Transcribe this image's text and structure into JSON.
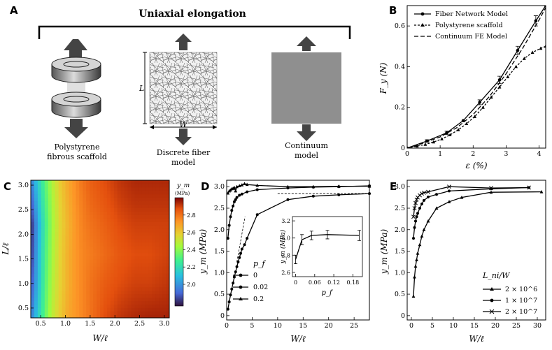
{
  "panels": {
    "A": {
      "label": "A",
      "title": "Uniaxial elongation",
      "captions": [
        [
          "Polystyrene",
          "fibrous scaffold"
        ],
        [
          "Discrete fiber",
          "model"
        ],
        [
          "Continuum",
          "model"
        ]
      ],
      "dim_l": "L",
      "dim_w": "W"
    },
    "B": {
      "label": "B",
      "xlabel": "ε (%)",
      "ylabel": "F_y (N)",
      "xticks": [
        "0",
        "1",
        "2",
        "3",
        "4"
      ],
      "yticks": [
        "0",
        "0.2",
        "0.4",
        "0.6"
      ],
      "legend": [
        "Fiber Network Model",
        "Polystyrene scaffold",
        "Continuum FE Model"
      ]
    },
    "C": {
      "label": "C",
      "xlabel": "W/ℓ",
      "ylabel": "L/ℓ",
      "xticks": [
        "0.5",
        "1.0",
        "1.5",
        "2.0",
        "2.5",
        "3.0"
      ],
      "yticks": [
        "0.5",
        "1.0",
        "1.5",
        "2.0",
        "2.5",
        "3.0"
      ],
      "cbar_title": "y_m",
      "cbar_unit": "(MPa)",
      "cbar_ticks": [
        "2.0",
        "2.2",
        "2.4",
        "2.6",
        "2.8"
      ]
    },
    "D": {
      "label": "D",
      "xlabel": "W/ℓ",
      "ylabel": "y_m (MPa)",
      "xticks": [
        "0",
        "5",
        "10",
        "15",
        "20",
        "25"
      ],
      "yticks": [
        "0",
        "0.5",
        "1.0",
        "1.5",
        "2.0",
        "2.5",
        "3.0"
      ],
      "legend_title": "p_f",
      "legend": [
        "0",
        "0.02",
        "0.2"
      ],
      "inset_ylabel": "y_m (MPa)",
      "inset_xlabel": "p_f",
      "inset_xticks": [
        "0",
        "0.06",
        "0.12",
        "0.18"
      ],
      "inset_yticks": [
        "2.6",
        "2.8",
        "3.0",
        "3.2"
      ]
    },
    "E": {
      "label": "E",
      "xlabel": "W/ℓ",
      "ylabel": "y_m (MPa)",
      "xticks": [
        "0",
        "5",
        "10",
        "15",
        "20",
        "25",
        "30"
      ],
      "yticks": [
        "0",
        "0.5",
        "1.0",
        "1.5",
        "2.0",
        "2.5",
        "3.0"
      ],
      "legend_title": "L_ni/W",
      "legend": [
        "2 × 10^6",
        "1 × 10^7",
        "2 × 10^7"
      ]
    }
  },
  "chart_data": [
    {
      "panel": "B",
      "type": "line",
      "xlabel": "ε (%)",
      "ylabel": "F_y (N)",
      "xlim": [
        0,
        4.2
      ],
      "ylim": [
        0,
        0.7
      ],
      "series": [
        {
          "name": "Fiber Network Model",
          "marker": "circle",
          "x": [
            0,
            0.6,
            1.2,
            1.7,
            2.2,
            2.8,
            3.35,
            3.9,
            4.2
          ],
          "y": [
            0,
            0.035,
            0.075,
            0.135,
            0.225,
            0.335,
            0.48,
            0.625,
            0.7
          ]
        },
        {
          "name": "Polystyrene scaffold",
          "marker": "triangle",
          "x": [
            0,
            0.3,
            0.55,
            0.8,
            1.05,
            1.3,
            1.55,
            1.8,
            2.05,
            2.3,
            2.55,
            2.8,
            3.05,
            3.3,
            3.55,
            3.8,
            4.05,
            4.2
          ],
          "y": [
            0,
            0.01,
            0.018,
            0.03,
            0.045,
            0.065,
            0.09,
            0.12,
            0.155,
            0.2,
            0.25,
            0.3,
            0.35,
            0.4,
            0.44,
            0.47,
            0.49,
            0.5
          ]
        },
        {
          "name": "Continuum FE Model",
          "marker": "none",
          "x": [
            0,
            0.5,
            1,
            1.5,
            2,
            2.5,
            3,
            3.5,
            4,
            4.2
          ],
          "y": [
            0,
            0.025,
            0.055,
            0.1,
            0.165,
            0.255,
            0.365,
            0.49,
            0.63,
            0.69
          ]
        }
      ],
      "error_bars": {
        "x": [
          0.6,
          1.2,
          2.2,
          2.8,
          3.35,
          3.9
        ],
        "err": [
          0.006,
          0.008,
          0.012,
          0.018,
          0.02,
          0.025
        ]
      }
    },
    {
      "panel": "C",
      "type": "heatmap",
      "xlabel": "W/ℓ",
      "ylabel": "L/ℓ",
      "xlim": [
        0.3,
        3.1
      ],
      "ylim": [
        0.3,
        3.1
      ],
      "colorbar": {
        "label": "y_m (MPa)",
        "range": [
          1.75,
          3.0
        ]
      },
      "x": [
        0.3,
        0.45,
        0.6,
        0.75,
        0.9,
        1.05,
        1.2,
        1.35,
        1.5,
        1.8,
        2.1,
        2.4,
        2.7,
        3.1
      ],
      "y": [
        0.3,
        1.0,
        1.6,
        2.2,
        2.6,
        3.1
      ],
      "z": [
        [
          1.95,
          2.15,
          2.35,
          2.5,
          2.6,
          2.68,
          2.72,
          2.76,
          2.8,
          2.88,
          2.92,
          2.94,
          2.95,
          2.95
        ],
        [
          1.85,
          2.1,
          2.32,
          2.48,
          2.58,
          2.66,
          2.72,
          2.76,
          2.8,
          2.85,
          2.88,
          2.9,
          2.9,
          2.92
        ],
        [
          1.8,
          2.08,
          2.3,
          2.46,
          2.58,
          2.66,
          2.72,
          2.76,
          2.78,
          2.82,
          2.86,
          2.88,
          2.88,
          2.9
        ],
        [
          1.78,
          2.05,
          2.28,
          2.45,
          2.57,
          2.65,
          2.72,
          2.77,
          2.8,
          2.84,
          2.88,
          2.9,
          2.9,
          2.9
        ],
        [
          1.85,
          2.1,
          2.3,
          2.46,
          2.58,
          2.66,
          2.73,
          2.78,
          2.82,
          2.86,
          2.9,
          2.92,
          2.92,
          2.92
        ],
        [
          1.95,
          2.15,
          2.33,
          2.48,
          2.6,
          2.68,
          2.74,
          2.8,
          2.84,
          2.88,
          2.92,
          2.94,
          2.94,
          2.94
        ]
      ]
    },
    {
      "panel": "D",
      "type": "line",
      "xlabel": "W/ℓ",
      "ylabel": "y_m (MPa)",
      "xlim": [
        0,
        28
      ],
      "ylim": [
        -0.1,
        3.15
      ],
      "series": [
        {
          "name": "0",
          "marker": "circle",
          "x": [
            0.25,
            0.5,
            0.75,
            1,
            1.25,
            1.5,
            1.75,
            2,
            2.25,
            2.5,
            2.75,
            3,
            3.5,
            4,
            6,
            12,
            17,
            22,
            28
          ],
          "y": [
            0.15,
            0.32,
            0.48,
            0.62,
            0.76,
            0.9,
            1.02,
            1.14,
            1.25,
            1.35,
            1.45,
            1.55,
            1.65,
            1.8,
            2.35,
            2.7,
            2.78,
            2.81,
            2.84
          ]
        },
        {
          "name": "0.02",
          "marker": "circle",
          "x": [
            0.25,
            0.5,
            0.75,
            1,
            1.25,
            1.5,
            1.75,
            2,
            2.5,
            3,
            4,
            6,
            12,
            17,
            22,
            28
          ],
          "y": [
            1.8,
            2.1,
            2.3,
            2.45,
            2.55,
            2.65,
            2.7,
            2.75,
            2.8,
            2.83,
            2.88,
            2.93,
            2.97,
            2.99,
            3.0,
            3.02
          ]
        },
        {
          "name": "0.2",
          "marker": "triangle",
          "x": [
            0.25,
            0.5,
            0.75,
            1,
            1.25,
            1.5,
            1.75,
            2,
            2.5,
            3,
            3.5,
            4,
            6,
            12,
            17,
            22,
            28
          ],
          "y": [
            2.85,
            2.9,
            2.92,
            2.95,
            2.96,
            2.98,
            2.9,
            3.0,
            3.02,
            3.04,
            3.07,
            3.05,
            3.03,
            3.0,
            3.0,
            3.01,
            3.01
          ]
        }
      ],
      "inset": {
        "type": "line",
        "xlabel": "p_f",
        "ylabel": "y_m (MPa)",
        "xlim": [
          -0.01,
          0.21
        ],
        "ylim": [
          2.55,
          3.25
        ],
        "x": [
          0,
          0.02,
          0.05,
          0.1,
          0.2
        ],
        "y": [
          2.75,
          2.98,
          3.03,
          3.04,
          3.03
        ],
        "err": [
          0.05,
          0.06,
          0.05,
          0.05,
          0.06
        ]
      }
    },
    {
      "panel": "E",
      "type": "line",
      "xlabel": "W/ℓ",
      "ylabel": "y_m (MPa)",
      "xlim": [
        -1,
        32
      ],
      "ylim": [
        -0.1,
        3.15
      ],
      "series": [
        {
          "name": "2 × 10^6",
          "marker": "triangle",
          "x": [
            0.5,
            0.75,
            1,
            1.25,
            1.5,
            2,
            2.5,
            3,
            4,
            6,
            9,
            12,
            19,
            31
          ],
          "y": [
            0.45,
            0.9,
            1.15,
            1.3,
            1.45,
            1.65,
            1.85,
            2.0,
            2.2,
            2.5,
            2.65,
            2.75,
            2.87,
            2.88
          ]
        },
        {
          "name": "1 × 10^7",
          "marker": "circle",
          "x": [
            0.5,
            0.75,
            1,
            1.25,
            1.5,
            2,
            2.5,
            3,
            4,
            6,
            9,
            19,
            28
          ],
          "y": [
            1.8,
            2.05,
            2.2,
            2.3,
            2.38,
            2.5,
            2.6,
            2.68,
            2.76,
            2.82,
            2.9,
            2.95,
            2.98
          ]
        },
        {
          "name": "2 × 10^7",
          "marker": "x",
          "x": [
            0.5,
            0.75,
            1,
            1.25,
            1.5,
            2,
            2.5,
            3,
            4,
            9,
            19,
            28
          ],
          "y": [
            2.3,
            2.5,
            2.62,
            2.7,
            2.75,
            2.8,
            2.84,
            2.86,
            2.88,
            3.0,
            2.97,
            2.98
          ]
        }
      ]
    }
  ]
}
